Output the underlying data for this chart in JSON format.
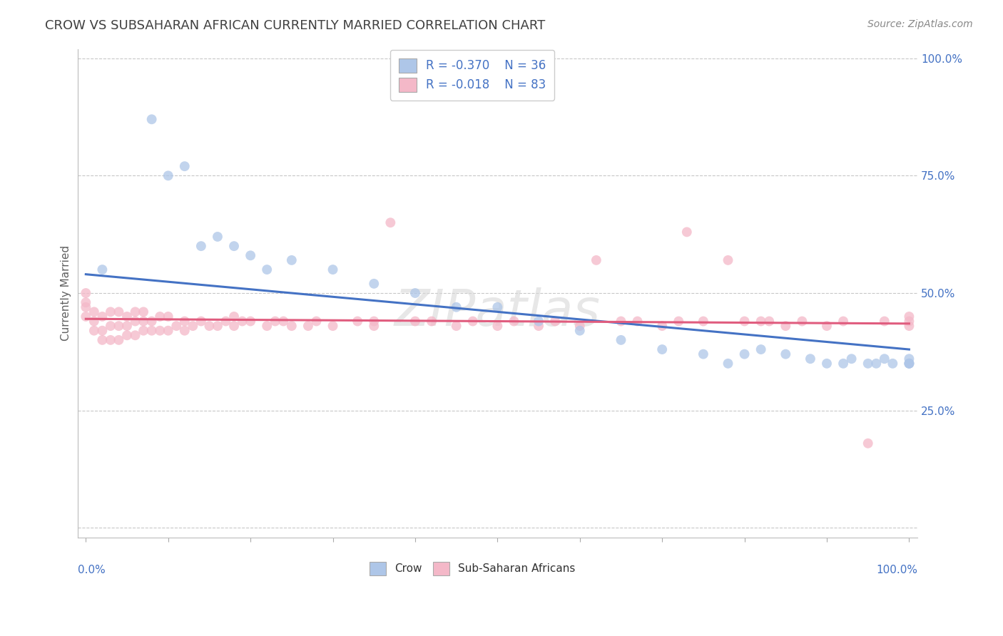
{
  "title": "CROW VS SUBSAHARAN AFRICAN CURRENTLY MARRIED CORRELATION CHART",
  "source": "Source: ZipAtlas.com",
  "ylabel": "Currently Married",
  "legend_entries": [
    {
      "label": "Crow",
      "R": "-0.370",
      "N": "36",
      "color": "#aec6e8",
      "line_color": "#4472c4"
    },
    {
      "label": "Sub-Saharan Africans",
      "R": "-0.018",
      "N": "83",
      "color": "#f4b8c8",
      "line_color": "#e05c7e"
    }
  ],
  "watermark_text": "ZIPatlas",
  "background_color": "#ffffff",
  "grid_color": "#c8c8c8",
  "title_color": "#404040",
  "axis_label_color": "#4472c4",
  "crow_x": [
    2,
    8,
    10,
    12,
    14,
    16,
    18,
    20,
    22,
    25,
    30,
    35,
    40,
    45,
    50,
    55,
    60,
    65,
    70,
    75,
    78,
    80,
    82,
    85,
    88,
    90,
    92,
    93,
    95,
    96,
    97,
    98,
    100,
    100,
    100,
    100
  ],
  "crow_y": [
    55,
    87,
    75,
    77,
    60,
    62,
    60,
    58,
    55,
    57,
    55,
    52,
    50,
    47,
    47,
    44,
    42,
    40,
    38,
    37,
    35,
    37,
    38,
    37,
    36,
    35,
    35,
    36,
    35,
    35,
    36,
    35,
    35,
    36,
    35,
    35
  ],
  "ss_x": [
    0,
    0,
    0,
    0,
    1,
    1,
    1,
    2,
    2,
    2,
    3,
    3,
    3,
    4,
    4,
    4,
    5,
    5,
    5,
    6,
    6,
    6,
    7,
    7,
    7,
    8,
    8,
    9,
    9,
    10,
    10,
    11,
    12,
    12,
    13,
    14,
    15,
    16,
    17,
    18,
    18,
    19,
    20,
    22,
    23,
    24,
    25,
    27,
    28,
    30,
    33,
    35,
    35,
    37,
    40,
    42,
    45,
    47,
    50,
    52,
    55,
    57,
    60,
    62,
    65,
    67,
    70,
    72,
    73,
    75,
    78,
    80,
    82,
    83,
    85,
    87,
    90,
    92,
    95,
    97,
    100,
    100,
    100
  ],
  "ss_y": [
    45,
    47,
    48,
    50,
    42,
    44,
    46,
    40,
    42,
    45,
    40,
    43,
    46,
    40,
    43,
    46,
    41,
    43,
    45,
    41,
    44,
    46,
    42,
    44,
    46,
    42,
    44,
    42,
    45,
    42,
    45,
    43,
    42,
    44,
    43,
    44,
    43,
    43,
    44,
    43,
    45,
    44,
    44,
    43,
    44,
    44,
    43,
    43,
    44,
    43,
    44,
    43,
    44,
    65,
    44,
    44,
    43,
    44,
    43,
    44,
    43,
    44,
    43,
    57,
    44,
    44,
    43,
    44,
    63,
    44,
    57,
    44,
    44,
    44,
    43,
    44,
    43,
    44,
    18,
    44,
    43,
    44,
    45
  ],
  "crow_line_x": [
    0,
    100
  ],
  "crow_line_y": [
    54,
    38
  ],
  "ss_line_x": [
    0,
    100
  ],
  "ss_line_y": [
    44.5,
    43.5
  ],
  "xlim": [
    -1,
    101
  ],
  "ylim": [
    -2,
    102
  ],
  "ytick_positions": [
    0,
    25,
    50,
    75,
    100
  ],
  "ytick_labels_right": [
    "",
    "25.0%",
    "50.0%",
    "75.0%",
    "100.0%"
  ],
  "xtick_positions": [
    0,
    10,
    20,
    30,
    40,
    50,
    60,
    70,
    80,
    90,
    100
  ],
  "scatter_size": 100,
  "scatter_alpha": 0.75
}
